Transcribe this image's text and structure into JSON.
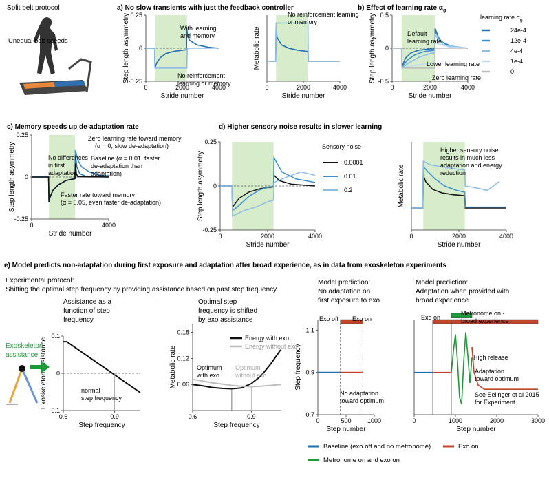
{
  "sections": {
    "treadmill": {
      "title": "Split belt protocol",
      "annotation": "Unequal belt speeds"
    },
    "a": {
      "title": "a) No slow transients with just the feedback controller"
    },
    "b": {
      "title": "b) Effect of learning rate α",
      "title_sub": "g"
    },
    "c": {
      "title": "c) Memory speeds up de-adaptation rate"
    },
    "d": {
      "title": "d) Higher sensory noise results in slower learning"
    },
    "e": {
      "title": "e) Model predicts non-adaptation during first exposure and adaptation after broad experience, as in data from exoskeleton experiments"
    }
  },
  "colors": {
    "dark_blue": "#1f6fb2",
    "mid_blue": "#3e8fcf",
    "light_blue": "#8bbde6",
    "pale_blue": "#bcdaf2",
    "green_band": "#d7eccb",
    "black": "#111111",
    "grey": "#bdbdbd",
    "red": "#c0452b",
    "green": "#1f9a3a",
    "orange": "#e8a33a"
  },
  "chart_data": [
    {
      "id": "a1",
      "type": "line",
      "xlabel": "Stride number",
      "ylabel": "Step length asymmetry",
      "xlim": [
        0,
        4000
      ],
      "ylim": [
        -0.25,
        0.25
      ],
      "xticks": [
        "0",
        "2000",
        "4000"
      ],
      "yticks": [
        "-0.25",
        "0",
        "0.25"
      ],
      "band": [
        500,
        2250
      ],
      "series": [
        {
          "color": "dark_blue",
          "x": [
            0,
            480,
            500,
            520,
            600,
            800,
            1100,
            1500,
            2000,
            2230,
            2250,
            2270,
            2400,
            2800,
            3400,
            4000
          ],
          "y": [
            0,
            0,
            -0.15,
            -0.14,
            -0.11,
            -0.07,
            -0.04,
            -0.025,
            -0.015,
            -0.012,
            0.15,
            0.11,
            0.06,
            0.025,
            0.008,
            0.0
          ]
        },
        {
          "color": "light_blue",
          "x": [
            0,
            480,
            500,
            700,
            2250,
            2270,
            4000
          ],
          "y": [
            0,
            0,
            -0.15,
            -0.15,
            -0.15,
            0.0,
            0.0
          ]
        }
      ],
      "annotations": [
        "With learning and memory",
        "No reinforcement learning or memory"
      ]
    },
    {
      "id": "a2",
      "type": "line",
      "xlabel": "Stride number",
      "ylabel": "Metabolic rate",
      "xlim": [
        0,
        4000
      ],
      "xticks": [
        "0",
        "2000",
        "4000"
      ],
      "band": [
        500,
        2250
      ],
      "series": [
        {
          "color": "dark_blue",
          "x": [
            0,
            480,
            500,
            560,
            800,
            1200,
            1700,
            2250,
            2270,
            4000
          ],
          "y": [
            0.3,
            0.3,
            0.78,
            0.66,
            0.55,
            0.5,
            0.47,
            0.45,
            0.3,
            0.3
          ]
        },
        {
          "color": "light_blue",
          "x": [
            0,
            480,
            500,
            2250,
            2270,
            4000
          ],
          "y": [
            0.3,
            0.3,
            0.88,
            0.88,
            0.3,
            0.3
          ]
        }
      ],
      "annotations": [
        "No reinforcement learning or memory"
      ]
    },
    {
      "id": "b",
      "type": "line",
      "xlabel": "Stride number",
      "ylabel": "Step length asymmetry",
      "xlim": [
        0,
        4000
      ],
      "ylim": [
        -0.5,
        0.5
      ],
      "xticks": [
        "0",
        "2000",
        "4000"
      ],
      "yticks": [
        "-0.5",
        "0",
        "0.5"
      ],
      "band": [
        500,
        2250
      ],
      "legend_title": "learning rate α",
      "legend_title_sub": "g",
      "series": [
        {
          "name": "24e-4",
          "color": "dark_blue",
          "x": [
            0,
            500,
            520,
            700,
            1000,
            1400,
            2000,
            2250,
            2270,
            2500,
            3000,
            4000
          ],
          "y": [
            0,
            0,
            -0.28,
            -0.15,
            -0.07,
            -0.03,
            -0.01,
            -0.01,
            0.3,
            0.12,
            0.03,
            0.0
          ]
        },
        {
          "name": "12e-4",
          "color": "mid_blue",
          "x": [
            0,
            500,
            520,
            800,
            1200,
            1700,
            2250,
            2270,
            2600,
            3200,
            4000
          ],
          "y": [
            0,
            0,
            -0.29,
            -0.18,
            -0.1,
            -0.05,
            -0.03,
            0.25,
            0.1,
            0.02,
            0.0
          ]
        },
        {
          "name": "4e-4",
          "color": "light_blue",
          "x": [
            0,
            500,
            520,
            900,
            1400,
            2000,
            2250,
            2270,
            2700,
            4000
          ],
          "y": [
            0,
            0,
            -0.3,
            -0.22,
            -0.14,
            -0.08,
            -0.07,
            0.2,
            0.05,
            0.0
          ]
        },
        {
          "name": "1e-4",
          "color": "pale_blue",
          "x": [
            0,
            500,
            520,
            1200,
            2250,
            2270,
            3000,
            4000
          ],
          "y": [
            0,
            0,
            -0.3,
            -0.26,
            -0.22,
            0.08,
            0.02,
            0.0
          ]
        },
        {
          "name": "0",
          "color": "grey",
          "x": [
            0,
            500,
            520,
            2250,
            2270,
            4000
          ],
          "y": [
            0,
            0,
            -0.3,
            -0.3,
            0.0,
            0.0
          ]
        }
      ],
      "annotations": [
        "Default learning rate",
        "Lower learning rate",
        "Zero learning rate"
      ]
    },
    {
      "id": "c",
      "type": "line",
      "xlabel": "Stride number",
      "ylabel": "Step length asymmetry",
      "xlim": [
        0,
        4000
      ],
      "ylim": [
        -0.25,
        0.25
      ],
      "xticks": [
        "0",
        "4000"
      ],
      "yticks": [
        "-0.25",
        "0",
        "0.25"
      ],
      "band": [
        900,
        2250
      ],
      "series": [
        {
          "color": "mid_blue",
          "x": [
            0,
            880,
            900,
            920,
            1100,
            1400,
            1800,
            2250,
            2270,
            2400,
            2600,
            3000,
            3500,
            4000
          ],
          "y": [
            0,
            0,
            -0.15,
            -0.13,
            -0.08,
            -0.045,
            -0.02,
            -0.01,
            0.16,
            0.1,
            0.06,
            0.03,
            0.012,
            0.005
          ]
        },
        {
          "color": "dark_blue",
          "x": [
            0,
            880,
            900,
            920,
            1100,
            1400,
            1800,
            2250,
            2270,
            2350,
            2500,
            2800,
            4000
          ],
          "y": [
            0,
            0,
            -0.15,
            -0.13,
            -0.08,
            -0.045,
            -0.02,
            -0.01,
            0.13,
            0.06,
            0.02,
            0.005,
            0.0
          ]
        },
        {
          "color": "black",
          "x": [
            0,
            880,
            900,
            920,
            1100,
            1400,
            1800,
            2250,
            2270,
            2320,
            2400,
            4000
          ],
          "y": [
            0,
            0,
            -0.15,
            -0.13,
            -0.08,
            -0.045,
            -0.02,
            -0.01,
            0.08,
            0.02,
            0.002,
            0.0
          ]
        }
      ],
      "annotations": [
        "No differences in first adaptation",
        "Zero learning rate toward memory (αm = 0, slow de-adaptation)",
        "Baseline (αm = 0.01, faster de-adaptation than adaptation)",
        "Faster rate toward memory (αm = 0.05, even faster de-adaptation)"
      ]
    },
    {
      "id": "d1",
      "type": "line",
      "xlabel": "Stride number",
      "ylabel": "Step length asymmetry",
      "xlim": [
        0,
        4000
      ],
      "ylim": [
        -0.25,
        0.25
      ],
      "xticks": [
        "0",
        "2000",
        "4000"
      ],
      "yticks": [
        "-0.25",
        "0",
        "0.25"
      ],
      "band": [
        500,
        2250
      ],
      "legend_title": "Sensory noise",
      "series": [
        {
          "name": "0.0001",
          "color": "black",
          "x": [
            0,
            500,
            520,
            800,
            1200,
            1700,
            2250,
            2270,
            2500,
            3000,
            4000
          ],
          "y": [
            0,
            0,
            -0.12,
            -0.07,
            -0.035,
            -0.015,
            -0.005,
            0.06,
            0.03,
            0.01,
            0.0
          ]
        },
        {
          "name": "0.01",
          "color": "mid_blue",
          "x": [
            0,
            500,
            520,
            800,
            1200,
            1700,
            2250,
            2270,
            2600,
            3200,
            4000
          ],
          "y": [
            0,
            0,
            -0.14,
            -0.11,
            -0.06,
            -0.02,
            0.0,
            0.16,
            0.08,
            0.04,
            0.02
          ]
        },
        {
          "name": "0.2",
          "color": "light_blue",
          "x": [
            0,
            500,
            520,
            1000,
            1500,
            2000,
            2250,
            2270,
            2800,
            3400,
            4000
          ],
          "y": [
            0,
            0,
            -0.17,
            -0.14,
            -0.12,
            -0.09,
            -0.08,
            0.02,
            0.05,
            0.08,
            0.06
          ]
        }
      ]
    },
    {
      "id": "d2",
      "type": "line",
      "xlabel": "Stride number",
      "ylabel": "Metabolic rate",
      "xlim": [
        0,
        4000
      ],
      "xticks": [
        "0",
        "2000",
        "4000"
      ],
      "band": [
        500,
        2250
      ],
      "series": [
        {
          "color": "black",
          "x": [
            0,
            480,
            500,
            600,
            900,
            1300,
            1800,
            2250,
            2270,
            4000
          ],
          "y": [
            0.25,
            0.25,
            0.62,
            0.55,
            0.46,
            0.42,
            0.4,
            0.39,
            0.25,
            0.25
          ]
        },
        {
          "color": "mid_blue",
          "x": [
            0,
            480,
            500,
            700,
            1000,
            1400,
            1900,
            2250,
            2270,
            4000
          ],
          "y": [
            0.25,
            0.25,
            0.72,
            0.66,
            0.58,
            0.5,
            0.45,
            0.43,
            0.26,
            0.26
          ]
        },
        {
          "color": "light_blue",
          "x": [
            0,
            480,
            500,
            800,
            1200,
            1700,
            2250,
            2270,
            2700,
            3200,
            3700
          ],
          "y": [
            0.25,
            0.25,
            0.78,
            0.74,
            0.72,
            0.7,
            0.68,
            0.5,
            0.48,
            0.45,
            0.55
          ]
        }
      ],
      "annotations": [
        "Higher sensory noise results in much less adaptation and energy reduction"
      ]
    },
    {
      "id": "e1",
      "type": "line",
      "title": "Assistance as a function of step frequency",
      "xlabel": "Step frequency",
      "ylabel": "Exoskeleton assistance",
      "xlim": [
        0.6,
        1.05
      ],
      "ylim": [
        -0.1,
        0.1
      ],
      "xticks": [
        "0.6",
        "0.9"
      ],
      "yticks": [
        "-0.1",
        "0",
        "0.1"
      ],
      "series": [
        {
          "color": "black",
          "x": [
            0.6,
            0.62,
            1.05
          ],
          "y": [
            0.085,
            0.085,
            -0.052
          ]
        }
      ],
      "annotations": [
        "normal step frequency"
      ]
    },
    {
      "id": "e2",
      "type": "line",
      "title": "Optimal step frequency is shifted by exo assistance",
      "xlabel": "Step frequency",
      "ylabel": "Metabolic rate",
      "xlim": [
        0.6,
        1.05
      ],
      "ylim": [
        0.0,
        0.2
      ],
      "xticks": [
        "0.6",
        "0.9"
      ],
      "yticks": [
        "0.06",
        "0.12",
        "0.18"
      ],
      "series": [
        {
          "name": "Energy with exo",
          "color": "black",
          "x": [
            0.6,
            0.65,
            0.7,
            0.75,
            0.8,
            0.85,
            0.9,
            0.95,
            1.0,
            1.05
          ],
          "y": [
            0.06,
            0.057,
            0.053,
            0.051,
            0.05,
            0.052,
            0.062,
            0.08,
            0.108,
            0.14
          ]
        },
        {
          "name": "Energy without exo",
          "color": "grey",
          "x": [
            0.6,
            0.7,
            0.8,
            0.85,
            0.9,
            0.95,
            1.0,
            1.05
          ],
          "y": [
            0.072,
            0.064,
            0.058,
            0.056,
            0.055,
            0.056,
            0.058,
            0.06
          ]
        }
      ],
      "annotations": [
        "Optimum with exo",
        "Optimum without exo"
      ]
    },
    {
      "id": "e3",
      "type": "line",
      "title": "Model prediction: No adaptation on first exposure to exo",
      "xlabel": "Step number",
      "ylabel": "Step frequency",
      "xlim": [
        0,
        1000
      ],
      "ylim": [
        0.7,
        1.15
      ],
      "xticks": [
        "0",
        "500",
        "1000"
      ],
      "yticks": [
        "0.7",
        "0.9",
        "1.1"
      ],
      "series": [
        {
          "color": "dark_blue",
          "x": [
            0,
            400
          ],
          "y": [
            0.9,
            0.9
          ]
        },
        {
          "color": "red",
          "x": [
            400,
            800
          ],
          "y": [
            0.9,
            0.9
          ]
        }
      ],
      "annotations": [
        "Exo off",
        "Exo on",
        "No adaptation toward optimum"
      ]
    },
    {
      "id": "e4",
      "type": "line",
      "title": "Model prediction: Adaptation when provided with broad experience",
      "xlabel": "Step number",
      "ylabel": "",
      "xlim": [
        0,
        3000
      ],
      "ylim": [
        0.7,
        1.15
      ],
      "xticks": [
        "0",
        "1000",
        "2000",
        "3000"
      ],
      "series": [
        {
          "color": "dark_blue",
          "x": [
            0,
            450
          ],
          "y": [
            0.9,
            0.9
          ]
        },
        {
          "color": "red",
          "x": [
            450,
            900
          ],
          "y": [
            0.9,
            0.9
          ]
        },
        {
          "color": "green",
          "x": [
            900,
            950,
            1000,
            1050,
            1100,
            1150,
            1200,
            1250,
            1300,
            1350,
            1400
          ],
          "y": [
            0.9,
            1.0,
            1.08,
            0.95,
            0.78,
            0.75,
            0.95,
            1.09,
            0.98,
            0.85,
            0.97
          ]
        },
        {
          "color": "red",
          "x": [
            1400,
            1450,
            1550,
            1700,
            2000,
            3000
          ],
          "y": [
            1.02,
            0.9,
            0.84,
            0.82,
            0.82,
            0.82
          ]
        }
      ],
      "annotations": [
        "Exo on",
        "Metronome on - broad experience",
        "High release",
        "Adaptation toward optimum",
        "See Selinger et al 2015 for Experiment"
      ]
    }
  ],
  "e_texts": {
    "protocol_title": "Experimental protocol:",
    "protocol_sub": "Shifting the optimal step frequency by providing assistance based on past step frequency",
    "exo_label": "Exoskeleton assistance",
    "legend": [
      {
        "label": "Baseline (exo off and no metronome)",
        "color": "dark_blue"
      },
      {
        "label": "Exo on",
        "color": "red"
      },
      {
        "label": "Metronome on and exo on",
        "color": "green"
      }
    ]
  }
}
